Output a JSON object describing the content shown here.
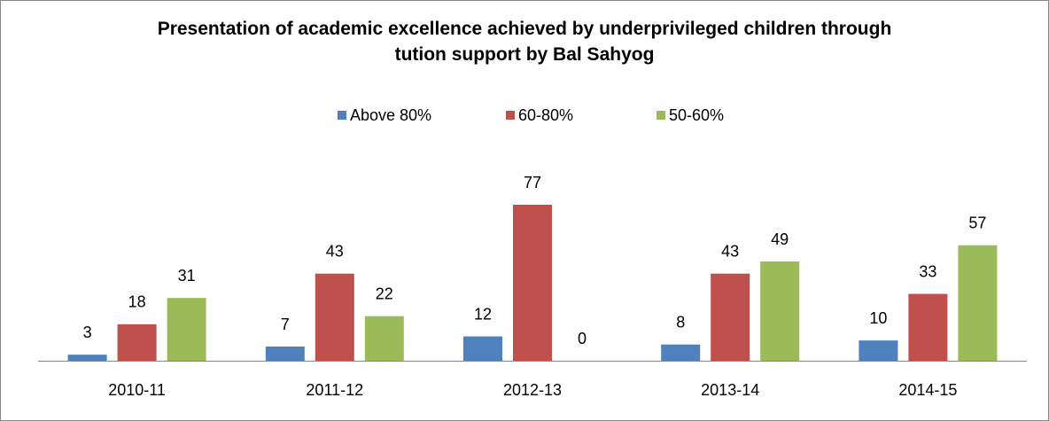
{
  "chart_data": {
    "type": "bar",
    "title": "Presentation of academic excellence achieved by underprivileged children through tution support by Bal Sahyog",
    "categories": [
      "2010-11",
      "2011-12",
      "2012-13",
      "2013-14",
      "2014-15"
    ],
    "series": [
      {
        "name": "Above 80%",
        "color": "#4f81bd",
        "values": [
          3,
          7,
          12,
          8,
          10
        ]
      },
      {
        "name": "60-80%",
        "color": "#c0504d",
        "values": [
          18,
          43,
          77,
          43,
          33
        ]
      },
      {
        "name": "50-60%",
        "color": "#9bbb59",
        "values": [
          31,
          22,
          0,
          49,
          57
        ]
      }
    ],
    "legend": "top",
    "grid": false
  }
}
